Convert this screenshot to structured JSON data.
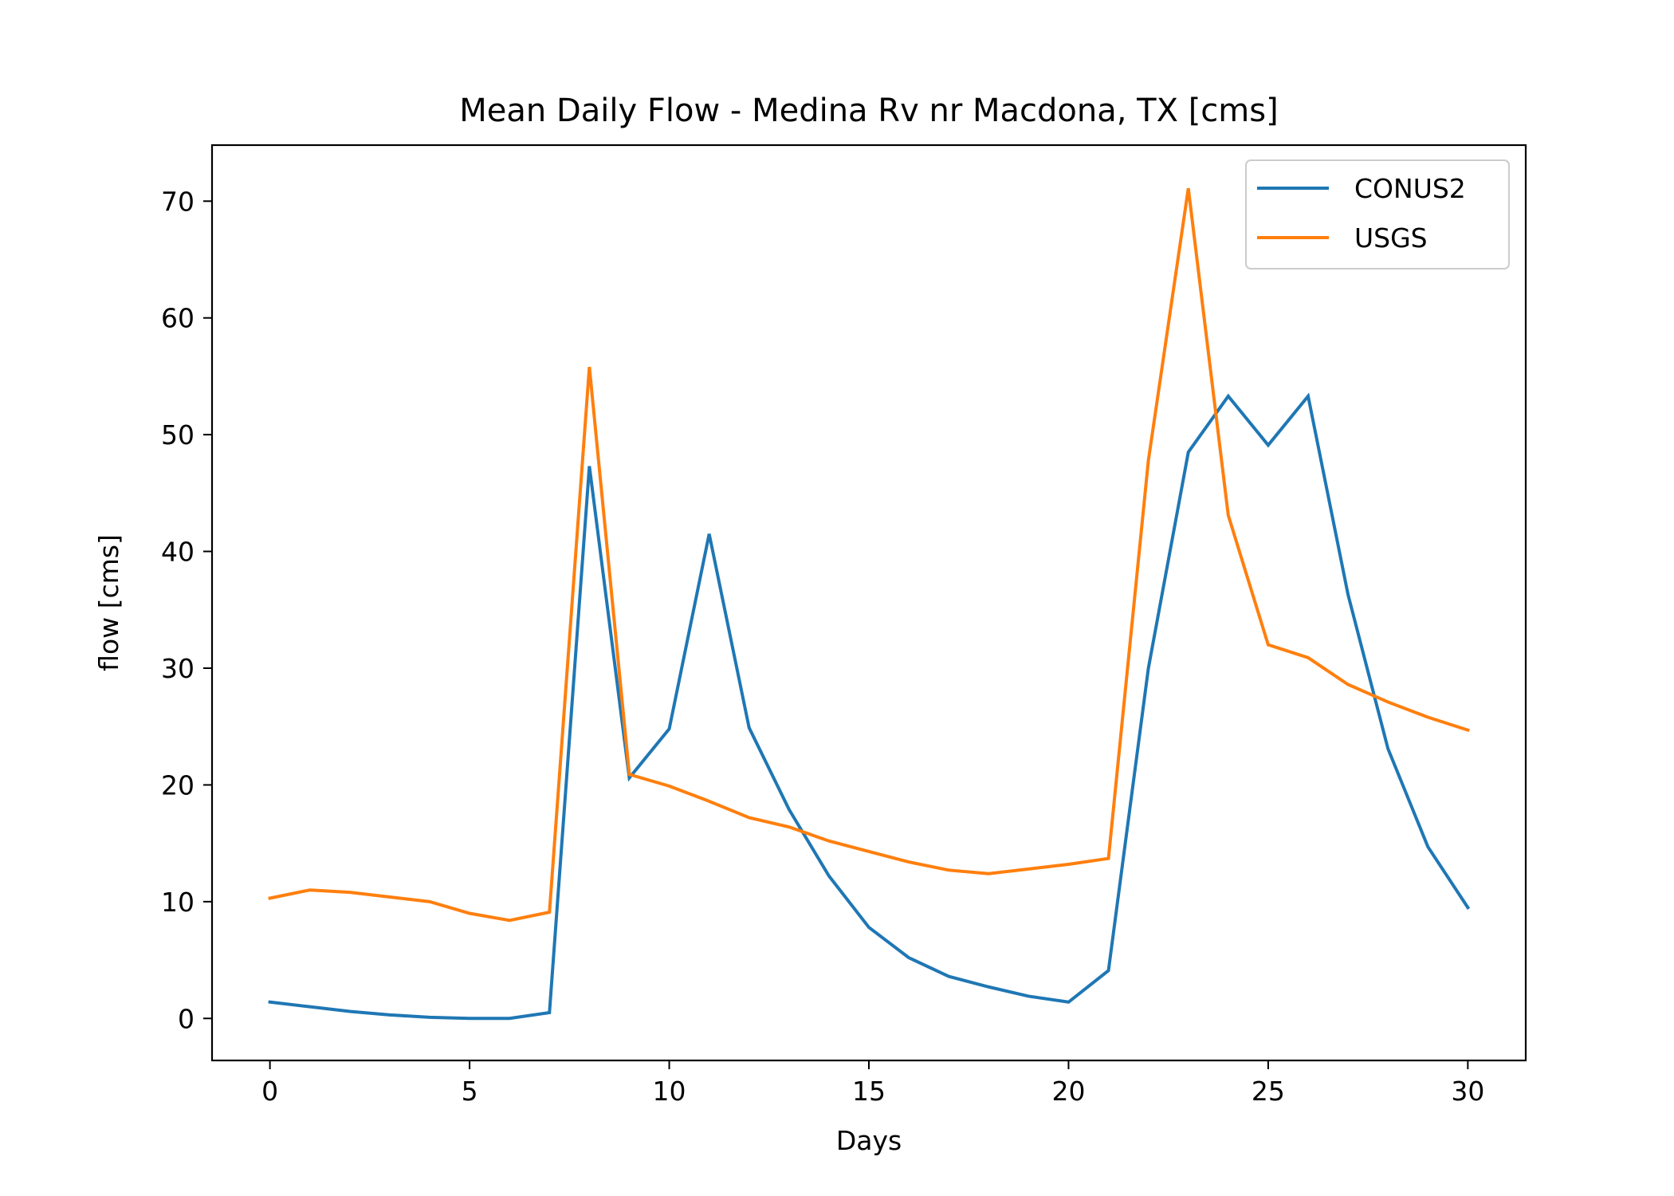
{
  "chart_data": {
    "type": "line",
    "title": "Mean Daily Flow - Medina Rv nr Macdona, TX [cms]",
    "xlabel": "Days",
    "ylabel": "flow [cms]",
    "xlim": [
      -1.45,
      31.45
    ],
    "ylim": [
      -3.6,
      74.8
    ],
    "xticks": [
      0,
      5,
      10,
      15,
      20,
      25,
      30
    ],
    "yticks": [
      0,
      10,
      20,
      30,
      40,
      50,
      60,
      70
    ],
    "grid": false,
    "legend_position": "upper right",
    "x": [
      0,
      1,
      2,
      3,
      4,
      5,
      6,
      7,
      8,
      9,
      10,
      11,
      12,
      13,
      14,
      15,
      16,
      17,
      18,
      19,
      20,
      21,
      22,
      23,
      24,
      25,
      26,
      27,
      28,
      29,
      30
    ],
    "series": [
      {
        "name": "CONUS2",
        "color": "#1f77b4",
        "values": [
          1.4,
          1.0,
          0.6,
          0.3,
          0.1,
          0.0,
          0.0,
          0.5,
          47.3,
          20.6,
          24.8,
          41.5,
          24.9,
          17.9,
          12.2,
          7.8,
          5.2,
          3.6,
          2.7,
          1.9,
          1.4,
          4.1,
          30.0,
          48.5,
          53.3,
          49.1,
          53.3,
          36.3,
          23.1,
          14.7,
          9.5
        ]
      },
      {
        "name": "USGS",
        "color": "#ff7f0e",
        "values": [
          10.3,
          11.0,
          10.8,
          10.4,
          10.0,
          9.0,
          8.4,
          9.1,
          55.8,
          20.9,
          19.9,
          18.6,
          17.2,
          16.4,
          15.2,
          14.3,
          13.4,
          12.7,
          12.4,
          12.8,
          13.2,
          13.7,
          47.8,
          71.1,
          43.1,
          32.0,
          30.9,
          28.6,
          27.1,
          25.8,
          24.7
        ]
      }
    ]
  }
}
